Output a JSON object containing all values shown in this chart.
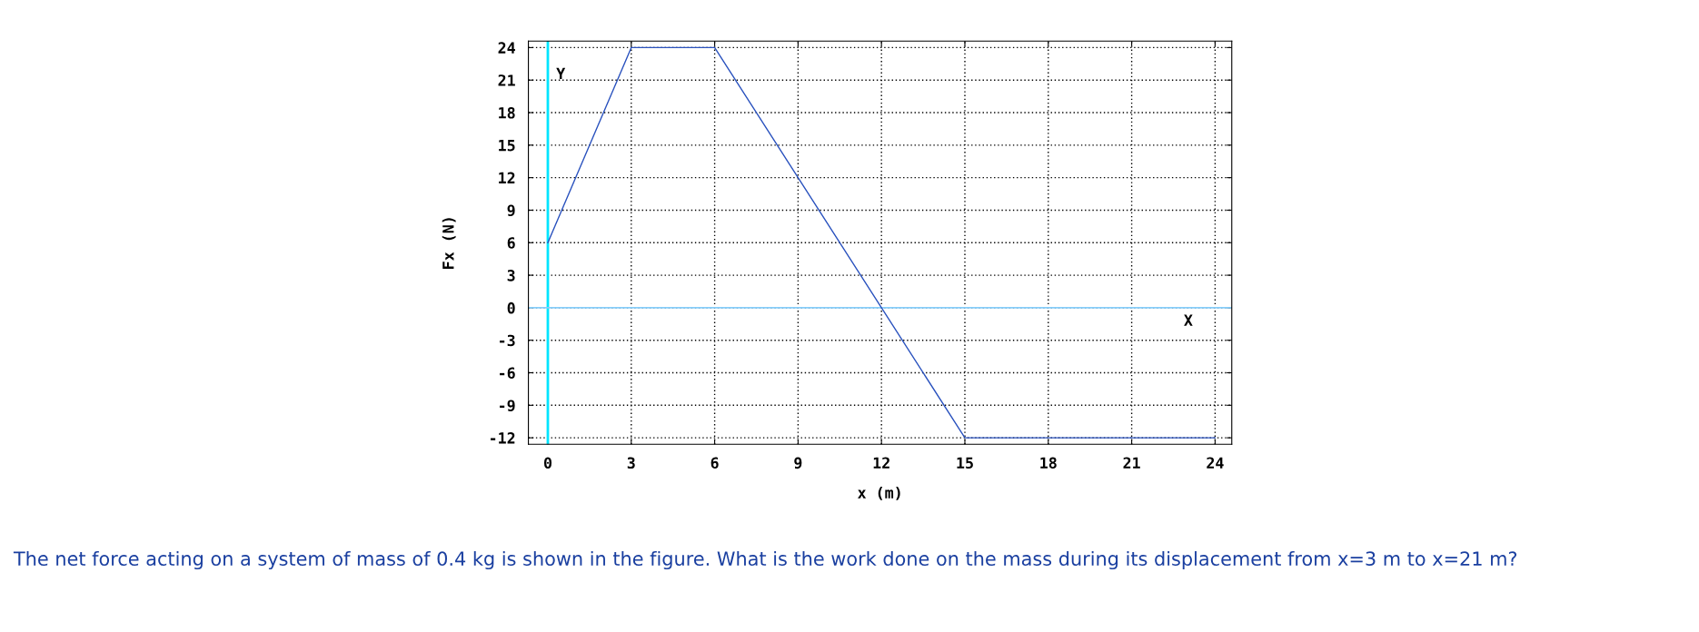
{
  "chart_data": {
    "type": "line",
    "xlabel": "x (m)",
    "ylabel": "Fx (N)",
    "x": [
      0,
      3,
      6,
      9,
      12,
      15,
      24
    ],
    "series": [
      {
        "color": "#2a52be",
        "values": [
          6,
          24,
          24,
          12,
          0,
          -12,
          -12
        ]
      }
    ],
    "xlim": [
      -0.7,
      24.6
    ],
    "ylim": [
      -12.6,
      24.6
    ],
    "xticks": [
      0,
      3,
      6,
      9,
      12,
      15,
      18,
      21,
      24
    ],
    "yticks": [
      -12,
      -9,
      -6,
      -3,
      0,
      3,
      6,
      9,
      12,
      15,
      18,
      21,
      24
    ],
    "grid": true,
    "marker": "none",
    "line_style": "solid",
    "ref_lines": [
      {
        "axis": "x",
        "value": 0,
        "label": "Y",
        "color": "#00e5ff"
      },
      {
        "axis": "y",
        "value": 0,
        "label": "X",
        "color": "#87cefa"
      }
    ],
    "annotations": [
      "The net force acting on a system of mass of 0.4 kg is shown in the figure. What is the work done on the mass during its displacement from x=3 m to x=21 m?"
    ]
  }
}
